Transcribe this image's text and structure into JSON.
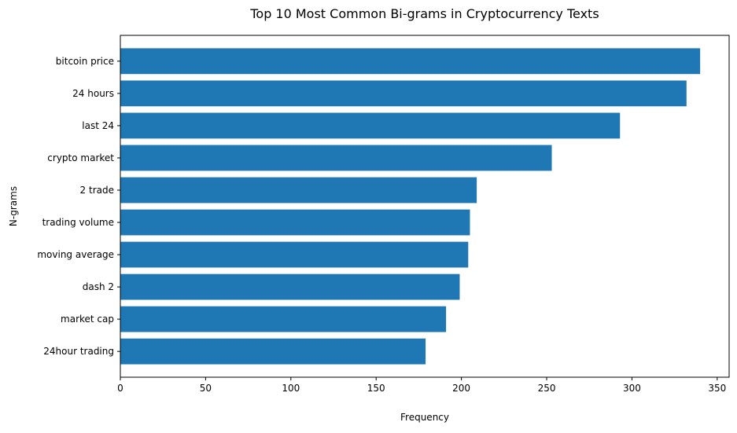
{
  "chart_data": {
    "type": "bar",
    "orientation": "horizontal",
    "title": "Top 10 Most Common Bi-grams in Cryptocurrency Texts",
    "xlabel": "Frequency",
    "ylabel": "N-grams",
    "categories": [
      "bitcoin price",
      "24 hours",
      "last 24",
      "crypto market",
      "2 trade",
      "trading volume",
      "moving average",
      "dash 2",
      "market cap",
      "24hour trading"
    ],
    "values": [
      340,
      332,
      293,
      253,
      209,
      205,
      204,
      199,
      191,
      179
    ],
    "xlim": [
      0,
      357
    ],
    "xticks": [
      0,
      50,
      100,
      150,
      200,
      250,
      300,
      350
    ],
    "grid": false,
    "legend": "none",
    "bar_color": "#1f77b4",
    "axis_color": "#000000"
  }
}
